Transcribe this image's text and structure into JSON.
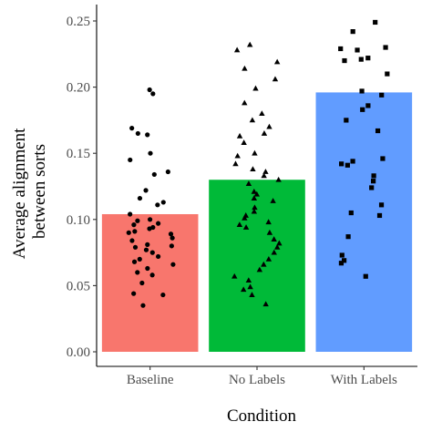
{
  "chart_data": {
    "type": "bar",
    "xlabel": "Condition",
    "ylabel": [
      "Average alignment",
      "between sorts"
    ],
    "categories": [
      "Baseline",
      "No Labels",
      "With Labels"
    ],
    "values": [
      0.104,
      0.13,
      0.196
    ],
    "ylim": [
      0,
      0.25
    ],
    "yticks": [
      "0.00",
      "0.05",
      "0.10",
      "0.15",
      "0.20",
      "0.25"
    ],
    "grid": false,
    "legend": "none",
    "colors": [
      "#f8766d",
      "#00ba38",
      "#619cff"
    ],
    "point_shapes": [
      "circle",
      "triangle",
      "square"
    ],
    "points": [
      [
        0.198,
        0.195,
        0.169,
        0.165,
        0.164,
        0.15,
        0.145,
        0.136,
        0.134,
        0.122,
        0.116,
        0.113,
        0.111,
        0.104,
        0.1,
        0.099,
        0.097,
        0.096,
        0.094,
        0.093,
        0.091,
        0.09,
        0.089,
        0.086,
        0.084,
        0.081,
        0.08,
        0.079,
        0.077,
        0.075,
        0.072,
        0.07,
        0.068,
        0.066,
        0.063,
        0.06,
        0.058,
        0.052,
        0.044,
        0.043,
        0.035
      ],
      [
        0.232,
        0.228,
        0.219,
        0.214,
        0.206,
        0.199,
        0.188,
        0.18,
        0.175,
        0.17,
        0.165,
        0.163,
        0.158,
        0.15,
        0.148,
        0.142,
        0.138,
        0.136,
        0.133,
        0.13,
        0.127,
        0.121,
        0.119,
        0.116,
        0.114,
        0.109,
        0.106,
        0.103,
        0.101,
        0.098,
        0.096,
        0.094,
        0.09,
        0.085,
        0.082,
        0.079,
        0.075,
        0.07,
        0.066,
        0.062,
        0.057,
        0.054,
        0.049,
        0.047,
        0.043,
        0.036
      ],
      [
        0.249,
        0.242,
        0.23,
        0.229,
        0.228,
        0.222,
        0.221,
        0.22,
        0.21,
        0.197,
        0.194,
        0.186,
        0.183,
        0.175,
        0.167,
        0.146,
        0.144,
        0.142,
        0.141,
        0.133,
        0.129,
        0.124,
        0.111,
        0.105,
        0.103,
        0.087,
        0.073,
        0.069,
        0.067,
        0.057
      ]
    ]
  }
}
